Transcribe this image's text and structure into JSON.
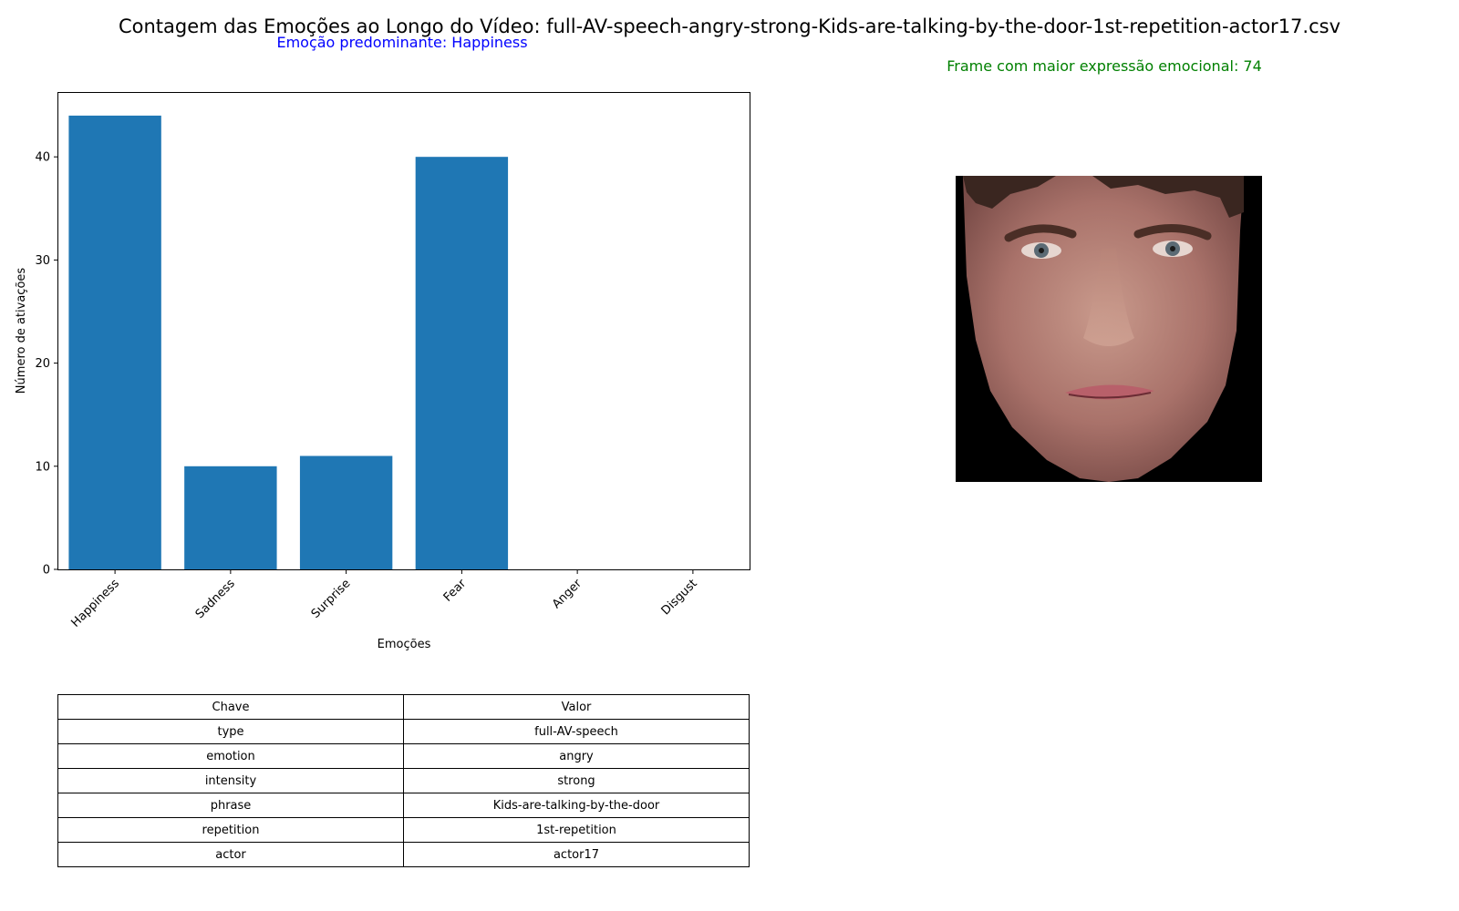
{
  "figure": {
    "suptitle": "Contagem das Emoções ao Longo do Vídeo: full-AV-speech-angry-strong-Kids-are-talking-by-the-door-1st-repetition-actor17.csv",
    "predominant_label": "Emoção predominante: Happiness",
    "frame_label": "Frame com maior expressão emocional: 74"
  },
  "chart_data": {
    "type": "bar",
    "categories": [
      "Happiness",
      "Sadness",
      "Surprise",
      "Fear",
      "Anger",
      "Disgust"
    ],
    "values": [
      44,
      10,
      11,
      40,
      0,
      0
    ],
    "xlabel": "Emoções",
    "ylabel": "Número de ativações",
    "ylim": [
      0,
      46.2
    ],
    "yticks": [
      0,
      10,
      20,
      30,
      40
    ],
    "bar_color": "#1f77b4",
    "grid": false
  },
  "table": {
    "headers": [
      "Chave",
      "Valor"
    ],
    "rows": [
      [
        "type",
        "full-AV-speech"
      ],
      [
        "emotion",
        "angry"
      ],
      [
        "intensity",
        "strong"
      ],
      [
        "phrase",
        "Kids-are-talking-by-the-door"
      ],
      [
        "repetition",
        "1st-repetition"
      ],
      [
        "actor",
        "actor17"
      ]
    ]
  },
  "colors": {
    "predominant_text": "#0000ff",
    "frame_text": "#008000",
    "image_background": "#000000"
  }
}
